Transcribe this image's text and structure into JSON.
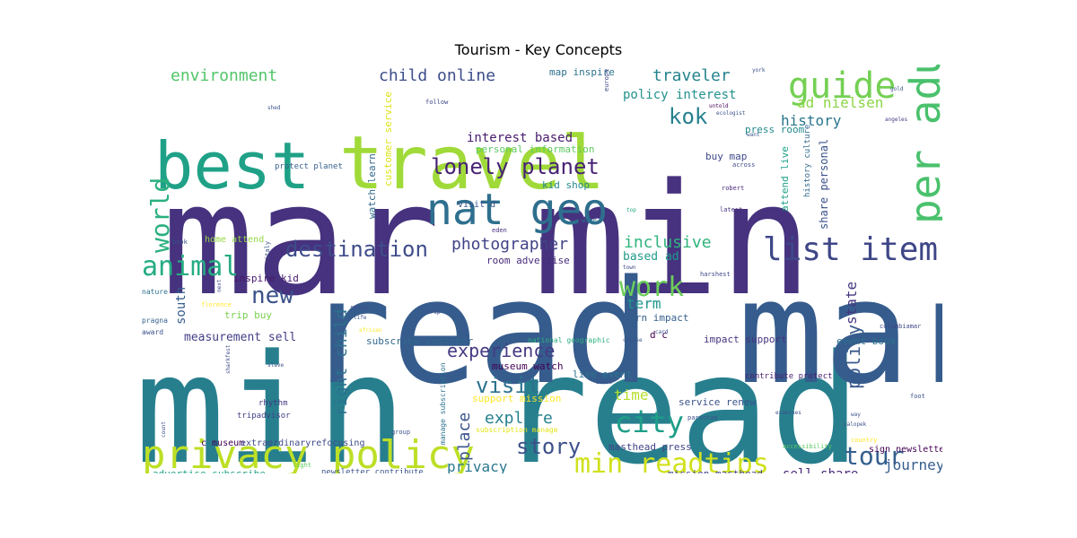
{
  "chart_data": {
    "type": "wordcloud",
    "title": "Tourism - Key Concepts",
    "background": "#ffffff",
    "colormap": "viridis",
    "words": [
      {
        "text": "mar min",
        "color": "#46327e"
      },
      {
        "text": "min read",
        "color": "#277f8e"
      },
      {
        "text": "read mar",
        "color": "#365c8d"
      },
      {
        "text": "travel",
        "color": "#a0da39"
      },
      {
        "text": "best",
        "color": "#1fa187"
      },
      {
        "text": "privacy policy",
        "color": "#bddf26"
      },
      {
        "text": "nat geo",
        "color": "#2e6f8e"
      },
      {
        "text": "per adult",
        "color": "#4ac16d"
      },
      {
        "text": "guide",
        "color": "#74d054"
      },
      {
        "text": "list item",
        "color": "#3f4788"
      },
      {
        "text": "city",
        "color": "#1f9e89"
      },
      {
        "text": "min readtips",
        "color": "#d0e11c"
      },
      {
        "text": "tour",
        "color": "#355f8d"
      },
      {
        "text": "animal",
        "color": "#25ac82"
      },
      {
        "text": "work",
        "color": "#6ccd5a"
      },
      {
        "text": "world",
        "color": "#2ab07f"
      },
      {
        "text": "lonely planet",
        "color": "#482374"
      },
      {
        "text": "destination",
        "color": "#3e4c8a"
      },
      {
        "text": "new",
        "color": "#3b528b"
      },
      {
        "text": "visit",
        "color": "#2c728e"
      },
      {
        "text": "story",
        "color": "#3c508b"
      },
      {
        "text": "policy",
        "color": "#38598c"
      },
      {
        "text": "kok",
        "color": "#27808e"
      },
      {
        "text": "experience",
        "color": "#443a83"
      },
      {
        "text": "explore",
        "color": "#26818e"
      },
      {
        "text": "right child",
        "color": "#2c718e"
      },
      {
        "text": "place",
        "color": "#3a548c"
      },
      {
        "text": "photographer",
        "color": "#414487"
      },
      {
        "text": "child online",
        "color": "#3d4e8a"
      },
      {
        "text": "environment",
        "color": "#52c569"
      },
      {
        "text": "traveler",
        "color": "#25848e"
      },
      {
        "text": "inclusive",
        "color": "#2fb47c"
      },
      {
        "text": "journey",
        "color": "#365d8d"
      },
      {
        "text": "state",
        "color": "#453781"
      },
      {
        "text": "term",
        "color": "#1f968b"
      },
      {
        "text": "history",
        "color": "#2a768e"
      },
      {
        "text": "privacy",
        "color": "#2a788e"
      },
      {
        "text": "time",
        "color": "#b5de2b"
      },
      {
        "text": "interest based",
        "color": "#481b6d"
      },
      {
        "text": "ad nielsen",
        "color": "#8bd646"
      },
      {
        "text": "policy interest",
        "color": "#21918c"
      },
      {
        "text": "south",
        "color": "#355e8d"
      },
      {
        "text": "sell share",
        "color": "#482677"
      },
      {
        "text": "measurement sell",
        "color": "#433e85"
      },
      {
        "text": "nielsen measurement",
        "color": "#46307e"
      },
      {
        "text": "share personal",
        "color": "#3b528b"
      },
      {
        "text": "renew subscription",
        "color": "#2e6e8e"
      },
      {
        "text": "advertise subscribe",
        "color": "#20a386"
      },
      {
        "text": "based ad",
        "color": "#1f9a8a"
      },
      {
        "text": "press room",
        "color": "#238a8d"
      },
      {
        "text": "buy map",
        "color": "#3e4989"
      },
      {
        "text": "home attend",
        "color": "#95d840"
      },
      {
        "text": "inspire kid",
        "color": "#48186a"
      },
      {
        "text": "trip buy",
        "color": "#7ad151"
      },
      {
        "text": "event book",
        "color": "#2d708e"
      },
      {
        "text": "museum watch",
        "color": "#440154"
      },
      {
        "text": "live event",
        "color": "#2b748e"
      },
      {
        "text": "masthead press",
        "color": "#414487"
      },
      {
        "text": "mission masthead",
        "color": "#404688"
      },
      {
        "text": "support mission",
        "color": "#fde725"
      },
      {
        "text": "service renew",
        "color": "#3a538b"
      },
      {
        "text": "impact support",
        "color": "#46337f"
      },
      {
        "text": "learn impact",
        "color": "#355f8d"
      },
      {
        "text": "subscribe customer",
        "color": "#31688e"
      },
      {
        "text": "room advertise",
        "color": "#472c7a"
      },
      {
        "text": "map inspire",
        "color": "#2c728e"
      },
      {
        "text": "customer service",
        "color": "#dde318"
      },
      {
        "text": "watch learn",
        "color": "#31688e"
      },
      {
        "text": "kid shop",
        "color": "#24878e"
      },
      {
        "text": "personal information",
        "color": "#5ec962"
      },
      {
        "text": "attend live",
        "color": "#1fa088"
      },
      {
        "text": "history culture",
        "color": "#31688e"
      },
      {
        "text": "c museum",
        "color": "#440154"
      },
      {
        "text": "extraordinaryrefocusing",
        "color": "#3e4a89"
      },
      {
        "text": "newsletter contribute",
        "color": "#39568c"
      },
      {
        "text": "sign newsletter",
        "color": "#440154"
      },
      {
        "text": "contribute protect",
        "color": "#482071"
      },
      {
        "text": "protect planet",
        "color": "#355f8d"
      },
      {
        "text": "manage subscription",
        "color": "#2c728e"
      },
      {
        "text": "subscription manage",
        "color": "#e5e419"
      },
      {
        "text": "national geographic",
        "color": "#2ab07f"
      },
      {
        "text": "visit d",
        "color": "#3b528b"
      },
      {
        "text": "d c",
        "color": "#440154"
      },
      {
        "text": "tripadvisor",
        "color": "#424086"
      },
      {
        "text": "rhythm",
        "color": "#443983"
      },
      {
        "text": "nature",
        "color": "#2d708e"
      },
      {
        "text": "pragna",
        "color": "#33638d"
      },
      {
        "text": "award",
        "color": "#3b528b"
      },
      {
        "text": "book",
        "color": "#3b528b"
      },
      {
        "text": "italy",
        "color": "#3b528b"
      },
      {
        "text": "eden",
        "color": "#472f7d"
      },
      {
        "text": "top",
        "color": "#22a884"
      },
      {
        "text": "wine",
        "color": "#2c728e"
      },
      {
        "text": "latest",
        "color": "#46327e"
      },
      {
        "text": "robert",
        "color": "#472c7a"
      },
      {
        "text": "across",
        "color": "#3e4989"
      },
      {
        "text": "europe",
        "color": "#3e4989"
      },
      {
        "text": "follow",
        "color": "#3f4788"
      },
      {
        "text": "untold",
        "color": "#440154"
      },
      {
        "text": "ecologist",
        "color": "#3b528b"
      },
      {
        "text": "want",
        "color": "#39568c"
      },
      {
        "text": "york",
        "color": "#3b528b"
      },
      {
        "text": "angeles",
        "color": "#443a83"
      },
      {
        "text": "gold",
        "color": "#3b528b"
      },
      {
        "text": "shed",
        "color": "#3b528b"
      },
      {
        "text": "harshest",
        "color": "#3e4989"
      },
      {
        "text": "town",
        "color": "#3e4989"
      },
      {
        "text": "next",
        "color": "#3f4788"
      },
      {
        "text": "florence",
        "color": "#fde725"
      },
      {
        "text": "space",
        "color": "#3b528b"
      },
      {
        "text": "life",
        "color": "#3b528b"
      },
      {
        "text": "trip",
        "color": "#3f4788"
      },
      {
        "text": "african",
        "color": "#fde725"
      },
      {
        "text": "cruise",
        "color": "#3b528b"
      },
      {
        "text": "card",
        "color": "#3b528b"
      },
      {
        "text": "colombiamar",
        "color": "#3f4788"
      },
      {
        "text": "slave",
        "color": "#3b528b"
      },
      {
        "text": "sharkfest",
        "color": "#3e4989"
      },
      {
        "text": "issue",
        "color": "#3b528b"
      },
      {
        "text": "group",
        "color": "#3b528b"
      },
      {
        "text": "parsotam",
        "color": "#3b528b"
      },
      {
        "text": "examines",
        "color": "#3b528b"
      },
      {
        "text": "salopek",
        "color": "#3b528b"
      },
      {
        "text": "way",
        "color": "#3b528b"
      },
      {
        "text": "foot",
        "color": "#3b528b"
      },
      {
        "text": "country",
        "color": "#fde725"
      },
      {
        "text": "accessibility",
        "color": "#5ec962"
      },
      {
        "text": "light",
        "color": "#5ec962"
      },
      {
        "text": "count",
        "color": "#3b528b"
      }
    ]
  }
}
